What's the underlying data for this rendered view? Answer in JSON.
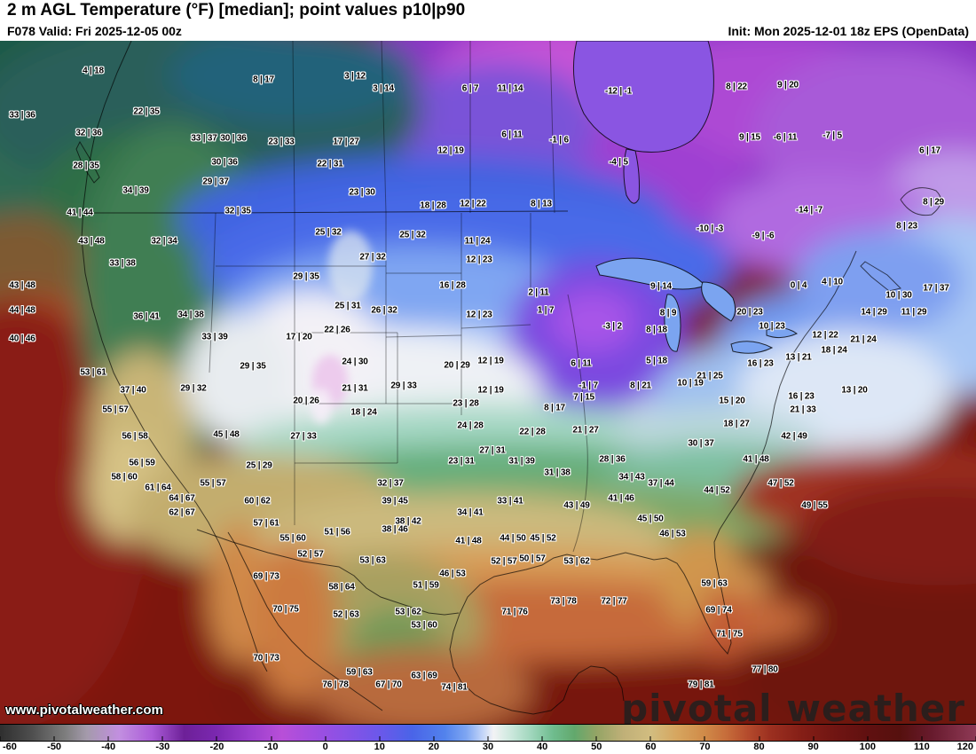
{
  "header": {
    "title": "2 m AGL Temperature (°F) [median]; point values p10|p90",
    "valid": "F078 Valid: Fri 2025-12-05 00z",
    "init": "Init: Mon 2025-12-01 18z EPS (OpenData)"
  },
  "watermark": {
    "url": "www.pivotalweather.com",
    "brand": "pivotal weather"
  },
  "colorbar": {
    "min": -60,
    "max": 120,
    "ticks": [
      -60,
      -50,
      -40,
      -30,
      -20,
      -10,
      0,
      10,
      20,
      30,
      40,
      50,
      60,
      70,
      80,
      90,
      100,
      110,
      120
    ],
    "gradient_stops": [
      {
        "t": -60,
        "color": "#2f2f2f"
      },
      {
        "t": -54,
        "color": "#4f4f4f"
      },
      {
        "t": -48,
        "color": "#7d7d7d"
      },
      {
        "t": -44,
        "color": "#a49aab"
      },
      {
        "t": -38,
        "color": "#c28fe0"
      },
      {
        "t": -32,
        "color": "#ab5cd8"
      },
      {
        "t": -26,
        "color": "#6d2098"
      },
      {
        "t": -20,
        "color": "#7b28b0"
      },
      {
        "t": -14,
        "color": "#9a3ecc"
      },
      {
        "t": -8,
        "color": "#b84fd8"
      },
      {
        "t": -2,
        "color": "#a04ee0"
      },
      {
        "t": 4,
        "color": "#8752e6"
      },
      {
        "t": 10,
        "color": "#6b58ea"
      },
      {
        "t": 16,
        "color": "#4a64e8"
      },
      {
        "t": 22,
        "color": "#5282ec"
      },
      {
        "t": 26,
        "color": "#7ea6f2"
      },
      {
        "t": 29,
        "color": "#c2d4f8"
      },
      {
        "t": 31,
        "color": "#f2f3f5"
      },
      {
        "t": 34,
        "color": "#cfe9df"
      },
      {
        "t": 38,
        "color": "#9fd6bc"
      },
      {
        "t": 42,
        "color": "#6fbc8e"
      },
      {
        "t": 46,
        "color": "#62a86c"
      },
      {
        "t": 50,
        "color": "#94a465"
      },
      {
        "t": 55,
        "color": "#c0b078"
      },
      {
        "t": 60,
        "color": "#d2bd80"
      },
      {
        "t": 65,
        "color": "#d6a55e"
      },
      {
        "t": 70,
        "color": "#d08a48"
      },
      {
        "t": 74,
        "color": "#c66c3a"
      },
      {
        "t": 78,
        "color": "#b44a2c"
      },
      {
        "t": 82,
        "color": "#9c3020"
      },
      {
        "t": 88,
        "color": "#841e16"
      },
      {
        "t": 94,
        "color": "#701512"
      },
      {
        "t": 100,
        "color": "#601010"
      },
      {
        "t": 106,
        "color": "#56100e"
      },
      {
        "t": 112,
        "color": "#681b2e"
      },
      {
        "t": 120,
        "color": "#8f3a56"
      }
    ]
  },
  "map": {
    "point_values": [
      [
        105,
        80,
        "4 | 18"
      ],
      [
        297,
        90,
        "8 | 17"
      ],
      [
        400,
        86,
        "3 | 12"
      ],
      [
        432,
        100,
        "3 | 14"
      ],
      [
        530,
        100,
        "6 | 7"
      ],
      [
        575,
        100,
        "11 | 14"
      ],
      [
        697,
        103,
        "-12 | -1"
      ],
      [
        830,
        98,
        "8 | 22"
      ],
      [
        888,
        96,
        "9 | 20"
      ],
      [
        25,
        130,
        "33 | 36"
      ],
      [
        165,
        126,
        "22 | 35"
      ],
      [
        100,
        150,
        "32 | 36"
      ],
      [
        230,
        156,
        "33 | 37"
      ],
      [
        263,
        156,
        "30 | 36"
      ],
      [
        317,
        160,
        "23 | 33"
      ],
      [
        390,
        160,
        "17 | 27"
      ],
      [
        508,
        170,
        "12 | 19"
      ],
      [
        577,
        152,
        "6 | 11"
      ],
      [
        630,
        158,
        "-1 | 6"
      ],
      [
        845,
        155,
        "9 | 15"
      ],
      [
        885,
        155,
        "-6 | 11"
      ],
      [
        938,
        153,
        "-7 | 5"
      ],
      [
        1048,
        170,
        "6 | 17"
      ],
      [
        97,
        187,
        "28 | 35"
      ],
      [
        253,
        183,
        "30 | 36"
      ],
      [
        372,
        185,
        "22 | 31"
      ],
      [
        697,
        183,
        "-4 | 5"
      ],
      [
        153,
        215,
        "34 | 39"
      ],
      [
        243,
        205,
        "29 | 37"
      ],
      [
        408,
        217,
        "23 | 30"
      ],
      [
        90,
        240,
        "41 | 44"
      ],
      [
        268,
        238,
        "32 | 35"
      ],
      [
        488,
        232,
        "18 | 28"
      ],
      [
        533,
        230,
        "12 | 22"
      ],
      [
        610,
        230,
        "8 | 13"
      ],
      [
        912,
        237,
        "-14 | -7"
      ],
      [
        1052,
        228,
        "8 | 29"
      ],
      [
        800,
        258,
        "-10 | -3"
      ],
      [
        860,
        266,
        "-9 | -6"
      ],
      [
        1022,
        255,
        "8 | 23"
      ],
      [
        103,
        272,
        "43 | 48"
      ],
      [
        185,
        272,
        "32 | 34"
      ],
      [
        370,
        262,
        "25 | 32"
      ],
      [
        465,
        265,
        "25 | 32"
      ],
      [
        538,
        272,
        "11 | 24"
      ],
      [
        420,
        290,
        "27 | 32"
      ],
      [
        540,
        293,
        "12 | 23"
      ],
      [
        138,
        297,
        "33 | 38"
      ],
      [
        25,
        322,
        "43 | 48"
      ],
      [
        345,
        312,
        "29 | 35"
      ],
      [
        510,
        322,
        "16 | 28"
      ],
      [
        607,
        330,
        "2 | 11"
      ],
      [
        745,
        323,
        "9 | 14"
      ],
      [
        900,
        322,
        "0 | 4"
      ],
      [
        938,
        318,
        "4 | 10"
      ],
      [
        1013,
        333,
        "10 | 30"
      ],
      [
        1055,
        325,
        "17 | 37"
      ],
      [
        25,
        350,
        "44 | 48"
      ],
      [
        165,
        357,
        "36 | 41"
      ],
      [
        215,
        355,
        "34 | 38"
      ],
      [
        392,
        345,
        "25 | 31"
      ],
      [
        433,
        350,
        "26 | 32"
      ],
      [
        540,
        355,
        "12 | 23"
      ],
      [
        615,
        350,
        "1 | 7"
      ],
      [
        753,
        353,
        "8 | 9"
      ],
      [
        845,
        352,
        "20 | 23"
      ],
      [
        985,
        352,
        "14 | 29"
      ],
      [
        1030,
        352,
        "11 | 29"
      ],
      [
        25,
        382,
        "40 | 46"
      ],
      [
        242,
        380,
        "33 | 39"
      ],
      [
        337,
        380,
        "17 | 20"
      ],
      [
        380,
        372,
        "22 | 26"
      ],
      [
        690,
        368,
        "-3 | 2"
      ],
      [
        740,
        372,
        "8 | 18"
      ],
      [
        870,
        368,
        "10 | 23"
      ],
      [
        930,
        378,
        "12 | 22"
      ],
      [
        973,
        383,
        "21 | 24"
      ],
      [
        285,
        413,
        "29 | 35"
      ],
      [
        400,
        408,
        "24 | 30"
      ],
      [
        515,
        412,
        "20 | 29"
      ],
      [
        553,
        407,
        "12 | 19"
      ],
      [
        655,
        410,
        "6 | 11"
      ],
      [
        740,
        407,
        "5 | 18"
      ],
      [
        800,
        424,
        "21 | 25"
      ],
      [
        857,
        410,
        "16 | 23"
      ],
      [
        900,
        403,
        "13 | 21"
      ],
      [
        940,
        395,
        "18 | 24"
      ],
      [
        105,
        420,
        "53 | 61"
      ],
      [
        218,
        438,
        "29 | 32"
      ],
      [
        400,
        438,
        "21 | 31"
      ],
      [
        455,
        435,
        "29 | 33"
      ],
      [
        553,
        440,
        "12 | 19"
      ],
      [
        663,
        435,
        "-1 | 7"
      ],
      [
        722,
        435,
        "8 | 21"
      ],
      [
        778,
        432,
        "10 | 19"
      ],
      [
        825,
        452,
        "15 | 20"
      ],
      [
        903,
        447,
        "16 | 23"
      ],
      [
        963,
        440,
        "13 | 20"
      ],
      [
        150,
        440,
        "37 | 40"
      ],
      [
        130,
        462,
        "55 | 57"
      ],
      [
        345,
        452,
        "20 | 26"
      ],
      [
        410,
        465,
        "18 | 24"
      ],
      [
        525,
        455,
        "23 | 28"
      ],
      [
        625,
        460,
        "8 | 17"
      ],
      [
        658,
        448,
        "7 | 15"
      ],
      [
        905,
        462,
        "21 | 33"
      ],
      [
        152,
        492,
        "56 | 58"
      ],
      [
        255,
        490,
        "45 | 48"
      ],
      [
        342,
        492,
        "27 | 33"
      ],
      [
        530,
        480,
        "24 | 28"
      ],
      [
        600,
        487,
        "22 | 28"
      ],
      [
        660,
        485,
        "21 | 27"
      ],
      [
        830,
        478,
        "18 | 27"
      ],
      [
        895,
        492,
        "42 | 49"
      ],
      [
        790,
        500,
        "30 | 37"
      ],
      [
        852,
        518,
        "41 | 48"
      ],
      [
        160,
        522,
        "56 | 59"
      ],
      [
        292,
        525,
        "25 | 29"
      ],
      [
        520,
        520,
        "23 | 31"
      ],
      [
        555,
        508,
        "27 | 31"
      ],
      [
        588,
        520,
        "31 | 39"
      ],
      [
        628,
        533,
        "31 | 38"
      ],
      [
        690,
        518,
        "28 | 36"
      ],
      [
        712,
        538,
        "34 | 43"
      ],
      [
        745,
        545,
        "37 | 44"
      ],
      [
        808,
        553,
        "44 | 52"
      ],
      [
        880,
        545,
        "47 | 52"
      ],
      [
        918,
        570,
        "49 | 55"
      ],
      [
        140,
        538,
        "58 | 60"
      ],
      [
        240,
        545,
        "55 | 57"
      ],
      [
        440,
        545,
        "32 | 37"
      ],
      [
        178,
        550,
        "61 | 64"
      ],
      [
        205,
        562,
        "64 | 67"
      ],
      [
        290,
        565,
        "60 | 62"
      ],
      [
        445,
        565,
        "39 | 45"
      ],
      [
        530,
        578,
        "34 | 41"
      ],
      [
        575,
        565,
        "33 | 41"
      ],
      [
        650,
        570,
        "43 | 49"
      ],
      [
        700,
        562,
        "41 | 46"
      ],
      [
        733,
        585,
        "45 | 50"
      ],
      [
        205,
        578,
        "62 | 67"
      ],
      [
        300,
        590,
        "57 | 61"
      ],
      [
        330,
        607,
        "55 | 60"
      ],
      [
        380,
        600,
        "51 | 56"
      ],
      [
        445,
        597,
        "38 | 46"
      ],
      [
        460,
        588,
        "38 | 42"
      ],
      [
        528,
        610,
        "41 | 48"
      ],
      [
        578,
        607,
        "44 | 50"
      ],
      [
        612,
        607,
        "45 | 52"
      ],
      [
        758,
        602,
        "46 | 53"
      ],
      [
        350,
        625,
        "52 | 57"
      ],
      [
        420,
        632,
        "53 | 63"
      ],
      [
        510,
        647,
        "46 | 53"
      ],
      [
        568,
        633,
        "52 | 57"
      ],
      [
        600,
        630,
        "50 | 57"
      ],
      [
        650,
        633,
        "53 | 62"
      ],
      [
        300,
        650,
        "69 | 73"
      ],
      [
        385,
        662,
        "58 | 64"
      ],
      [
        480,
        660,
        "51 | 59"
      ],
      [
        805,
        658,
        "59 | 63"
      ],
      [
        580,
        690,
        "71 | 76"
      ],
      [
        635,
        678,
        "73 | 78"
      ],
      [
        692,
        678,
        "72 | 77"
      ],
      [
        322,
        687,
        "70 | 75"
      ],
      [
        390,
        693,
        "52 | 63"
      ],
      [
        460,
        690,
        "53 | 62"
      ],
      [
        478,
        705,
        "53 | 60"
      ],
      [
        810,
        688,
        "69 | 74"
      ],
      [
        822,
        715,
        "71 | 75"
      ],
      [
        300,
        742,
        "70 | 73"
      ],
      [
        405,
        758,
        "59 | 63"
      ],
      [
        378,
        772,
        "76 | 78"
      ],
      [
        438,
        772,
        "67 | 70"
      ],
      [
        478,
        762,
        "63 | 69"
      ],
      [
        512,
        775,
        "74 | 81"
      ],
      [
        790,
        772,
        "79 | 81"
      ],
      [
        862,
        755,
        "77 | 80"
      ]
    ]
  }
}
